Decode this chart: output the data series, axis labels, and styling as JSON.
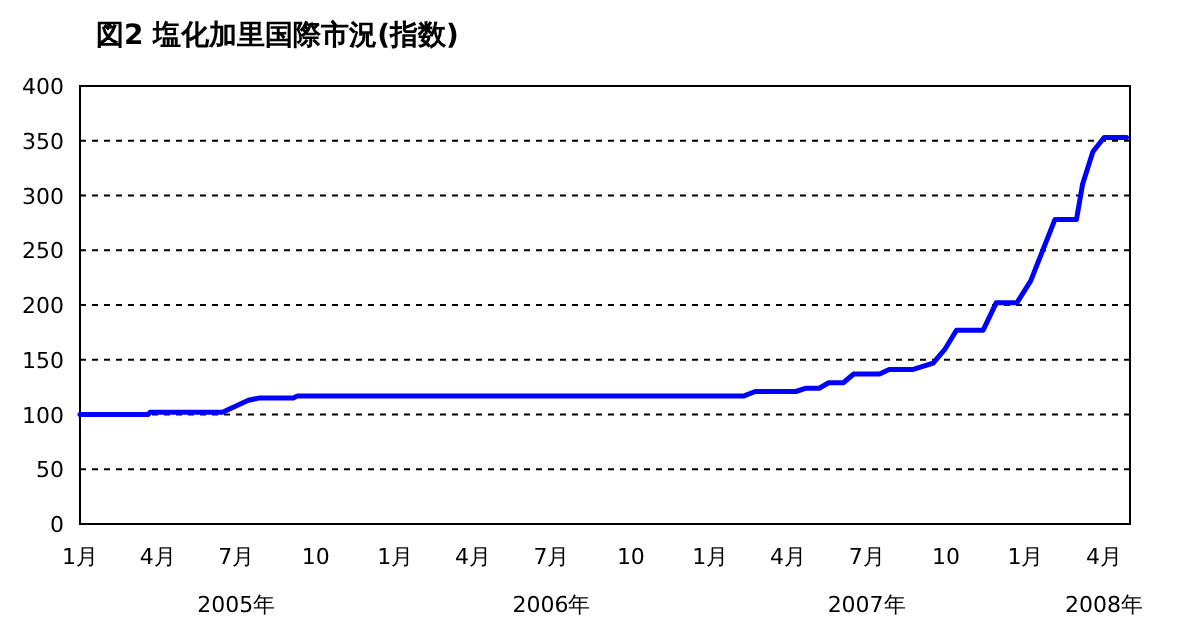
{
  "chart_data": {
    "type": "line",
    "title": "図2  塩化加里国際市況(指数)",
    "x": [
      "2005-01-01",
      "2005-03-21",
      "2005-03-23",
      "2005-06-15",
      "2005-07-15",
      "2005-07-27",
      "2005-09-05",
      "2005-09-10",
      "2007-02-09",
      "2007-02-22",
      "2007-04-10",
      "2007-04-22",
      "2007-05-07",
      "2007-05-18",
      "2007-06-04",
      "2007-06-16",
      "2007-07-16",
      "2007-07-27",
      "2007-08-23",
      "2007-09-04",
      "2007-09-16",
      "2007-09-30",
      "2007-10-13",
      "2007-11-13",
      "2007-11-28",
      "2007-12-22",
      "2008-01-07",
      "2008-02-04",
      "2008-02-29",
      "2008-03-07",
      "2008-03-19",
      "2008-04-01",
      "2008-04-27"
    ],
    "series": [
      {
        "color": "#0000ff",
        "values": [
          100,
          100,
          102,
          102,
          113,
          115,
          115,
          117,
          117,
          121,
          121,
          124,
          124,
          129,
          129,
          137,
          137,
          141,
          141,
          144,
          147,
          160,
          177,
          177,
          202,
          202,
          222,
          278,
          278,
          310,
          340,
          353,
          353
        ]
      }
    ],
    "xlim": [
      "2005-01-01",
      "2008-05-01"
    ],
    "xticks": [
      {
        "value": "2005-01-01",
        "label": "1月"
      },
      {
        "value": "2005-04-01",
        "label": "4月"
      },
      {
        "value": "2005-07-01",
        "label": "7月\n2005年"
      },
      {
        "value": "2005-10-01",
        "label": "10"
      },
      {
        "value": "2006-01-01",
        "label": "1月"
      },
      {
        "value": "2006-04-01",
        "label": "4月"
      },
      {
        "value": "2006-07-01",
        "label": "7月\n2006年"
      },
      {
        "value": "2006-10-01",
        "label": "10"
      },
      {
        "value": "2007-01-01",
        "label": "1月"
      },
      {
        "value": "2007-04-01",
        "label": "4月"
      },
      {
        "value": "2007-07-01",
        "label": "7月\n2007年"
      },
      {
        "value": "2007-10-01",
        "label": "10"
      },
      {
        "value": "2008-01-01",
        "label": "1月"
      },
      {
        "value": "2008-04-01",
        "label": "4月\n2008年"
      }
    ],
    "ylim": [
      0,
      400
    ],
    "yticks": [
      0,
      50,
      100,
      150,
      200,
      250,
      300,
      350,
      400
    ],
    "grid": "y",
    "line_style": "solid"
  }
}
